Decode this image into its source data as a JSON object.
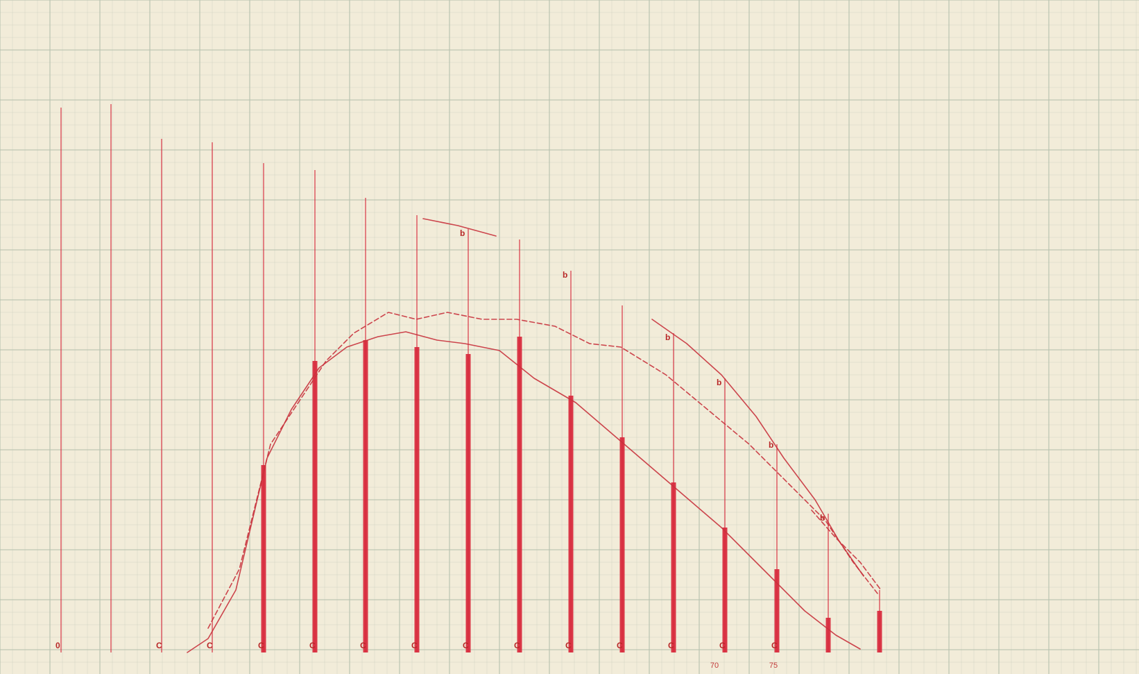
{
  "chart_data": {
    "type": "bar",
    "title": "",
    "xlabel": "",
    "ylabel": "",
    "grid": true,
    "paper_color": "#f2ecd9",
    "grid_color": "#b9c3b0",
    "bar_color": "#d8283c",
    "line_color": "#c8323c",
    "xlim": [
      0,
      1642
    ],
    "ylim": [
      0,
      971
    ],
    "x_tick_labels": [
      {
        "x": 1030,
        "text": "70"
      },
      {
        "x": 1115,
        "text": "75"
      }
    ],
    "bars": [
      {
        "x": 88,
        "top": 155,
        "bottom": 940,
        "kind": "thin",
        "letter": "0"
      },
      {
        "x": 160,
        "top": 150,
        "bottom": 940,
        "kind": "thin",
        "letter": ""
      },
      {
        "x": 233,
        "top": 200,
        "bottom": 940,
        "kind": "thin",
        "letter": "C"
      },
      {
        "x": 306,
        "top": 205,
        "bottom": 940,
        "kind": "thin",
        "letter": "C"
      },
      {
        "x": 380,
        "top": 235,
        "bottom": 940,
        "kind": "thick",
        "fill_from": 670,
        "letter": "C"
      },
      {
        "x": 454,
        "top": 245,
        "bottom": 940,
        "kind": "thick",
        "fill_from": 520,
        "letter": "C"
      },
      {
        "x": 527,
        "top": 285,
        "bottom": 940,
        "kind": "thick",
        "fill_from": 490,
        "letter": "C"
      },
      {
        "x": 601,
        "top": 310,
        "bottom": 940,
        "kind": "thick",
        "fill_from": 500,
        "letter": "C"
      },
      {
        "x": 675,
        "top": 330,
        "bottom": 940,
        "kind": "thick",
        "fill_from": 510,
        "letter": "C"
      },
      {
        "x": 749,
        "top": 345,
        "bottom": 940,
        "kind": "thick",
        "fill_from": 485,
        "letter": "C"
      },
      {
        "x": 823,
        "top": 390,
        "bottom": 940,
        "kind": "thick",
        "fill_from": 570,
        "letter": "C"
      },
      {
        "x": 897,
        "top": 440,
        "bottom": 940,
        "kind": "thick",
        "fill_from": 630,
        "letter": "C"
      },
      {
        "x": 971,
        "top": 480,
        "bottom": 940,
        "kind": "thick",
        "fill_from": 695,
        "letter": "C"
      },
      {
        "x": 1045,
        "top": 545,
        "bottom": 940,
        "kind": "thick",
        "fill_from": 760,
        "letter": "C"
      },
      {
        "x": 1120,
        "top": 640,
        "bottom": 940,
        "kind": "thick",
        "fill_from": 820,
        "letter": "C"
      },
      {
        "x": 1194,
        "top": 740,
        "bottom": 940,
        "kind": "thick",
        "fill_from": 890,
        "letter": ""
      },
      {
        "x": 1268,
        "top": 850,
        "bottom": 940,
        "kind": "thick",
        "fill_from": 880,
        "letter": ""
      }
    ],
    "markers": [
      {
        "x": 675,
        "y": 340,
        "text": "b"
      },
      {
        "x": 823,
        "y": 400,
        "text": "b"
      },
      {
        "x": 971,
        "y": 490,
        "text": "b"
      },
      {
        "x": 1045,
        "y": 555,
        "text": "b"
      },
      {
        "x": 1120,
        "y": 645,
        "text": "b"
      },
      {
        "x": 1194,
        "y": 750,
        "text": "b"
      }
    ],
    "series": [
      {
        "name": "",
        "style": "solid",
        "points": [
          [
            270,
            940
          ],
          [
            300,
            920
          ],
          [
            340,
            850
          ],
          [
            385,
            660
          ],
          [
            420,
            590
          ],
          [
            460,
            530
          ],
          [
            500,
            500
          ],
          [
            545,
            485
          ],
          [
            585,
            478
          ],
          [
            630,
            490
          ],
          [
            670,
            495
          ],
          [
            720,
            505
          ],
          [
            770,
            545
          ],
          [
            830,
            580
          ],
          [
            900,
            640
          ],
          [
            970,
            700
          ],
          [
            1040,
            760
          ],
          [
            1100,
            820
          ],
          [
            1160,
            880
          ],
          [
            1205,
            915
          ],
          [
            1240,
            935
          ]
        ]
      },
      {
        "name": "",
        "style": "dashed",
        "points": [
          [
            300,
            905
          ],
          [
            345,
            820
          ],
          [
            390,
            640
          ],
          [
            430,
            580
          ],
          [
            470,
            520
          ],
          [
            510,
            480
          ],
          [
            560,
            450
          ],
          [
            600,
            460
          ],
          [
            645,
            450
          ],
          [
            695,
            460
          ],
          [
            745,
            460
          ],
          [
            800,
            470
          ],
          [
            850,
            495
          ],
          [
            895,
            500
          ],
          [
            960,
            540
          ],
          [
            1020,
            590
          ],
          [
            1080,
            640
          ],
          [
            1140,
            700
          ],
          [
            1190,
            750
          ],
          [
            1230,
            810
          ],
          [
            1265,
            855
          ]
        ]
      },
      {
        "name": "",
        "style": "solid",
        "points": [
          [
            610,
            315
          ],
          [
            660,
            325
          ],
          [
            715,
            340
          ]
        ]
      },
      {
        "name": "",
        "style": "solid",
        "points": [
          [
            940,
            460
          ],
          [
            990,
            495
          ],
          [
            1040,
            540
          ],
          [
            1090,
            600
          ],
          [
            1130,
            660
          ],
          [
            1175,
            720
          ],
          [
            1210,
            780
          ],
          [
            1245,
            830
          ]
        ]
      },
      {
        "name": "",
        "style": "dashed",
        "points": [
          [
            1170,
            735
          ],
          [
            1205,
            775
          ],
          [
            1240,
            810
          ],
          [
            1270,
            850
          ]
        ]
      }
    ]
  }
}
